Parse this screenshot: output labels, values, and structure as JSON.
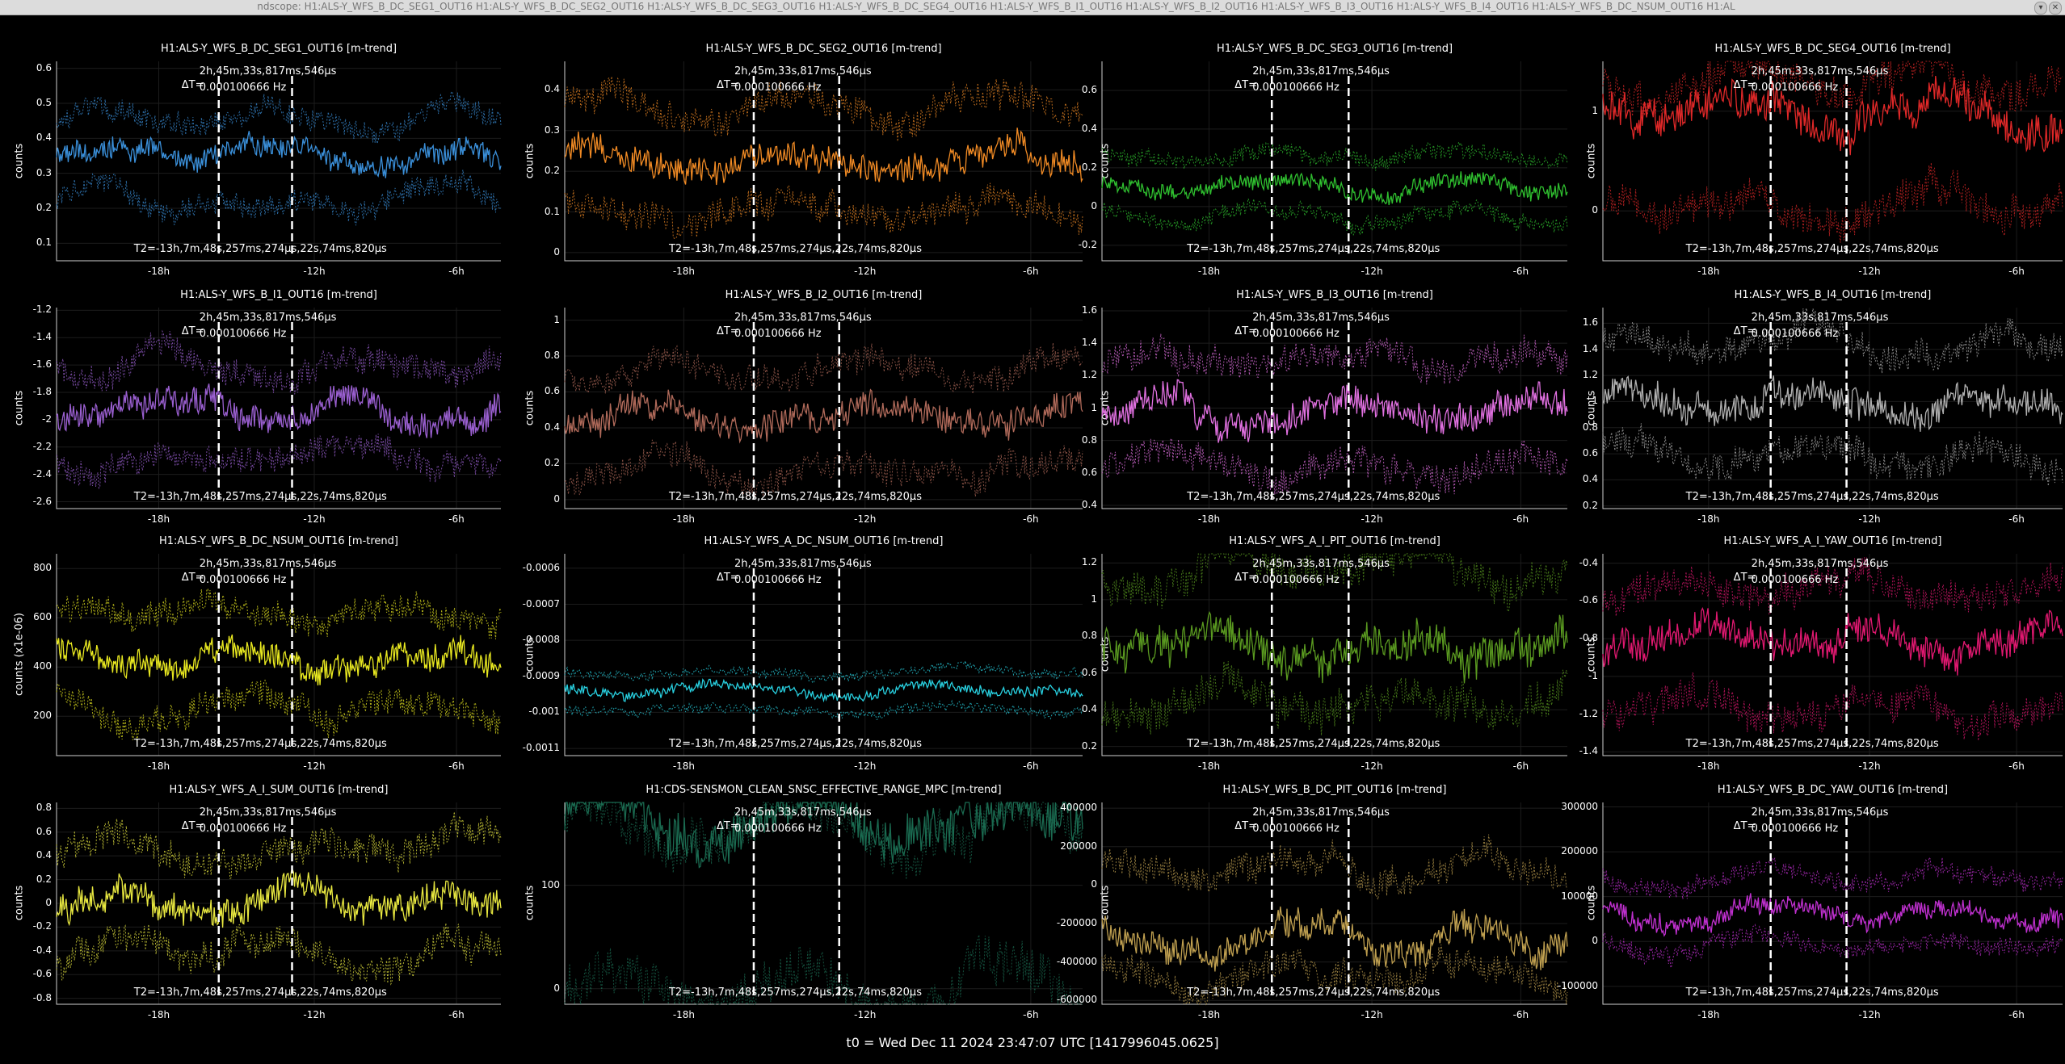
{
  "window": {
    "title": "ndscope: H1:ALS-Y_WFS_B_DC_SEG1_OUT16 H1:ALS-Y_WFS_B_DC_SEG2_OUT16 H1:ALS-Y_WFS_B_DC_SEG3_OUT16 H1:ALS-Y_WFS_B_DC_SEG4_OUT16 H1:ALS-Y_WFS_B_I1_OUT16 H1:ALS-Y_WFS_B_I2_OUT16 H1:ALS-Y_WFS_B_I3_OUT16 H1:ALS-Y_WFS_B_I4_OUT16 H1:ALS-Y_WFS_B_DC_NSUM_OUT16 H1:AL",
    "buttons": [
      "chevron-down-icon",
      "close-icon"
    ]
  },
  "cursor": {
    "dt_label": "ΔT=",
    "dt_value": "2h,45m,33s,817ms,546μs",
    "freq_value": "0.000100666 Hz",
    "t2_label": "T2=-13h,7m,48s,257ms,274μs",
    "t2_suffix": ",22s,74ms,820μs"
  },
  "x_ticks": [
    "-18h",
    "-12h",
    "-6h"
  ],
  "footer": {
    "t0": "t0 = Wed Dec 11 2024 23:47:07 UTC [1417996045.0625]"
  },
  "plots": [
    {
      "title": "H1:ALS-Y_WFS_B_DC_SEG1_OUT16 [m-trend]",
      "ylabel": "counts",
      "color": "#3a8fd9",
      "yticks": [
        "0.6",
        "0.5",
        "0.4",
        "0.3",
        "0.2",
        "0.1"
      ],
      "chart_data": {
        "type": "line",
        "ylim": [
          0.05,
          0.62
        ],
        "series": [
          {
            "values_mean": 0.35,
            "min_mean": 0.22,
            "max_mean": 0.45
          }
        ]
      }
    },
    {
      "title": "H1:ALS-Y_WFS_B_DC_SEG2_OUT16 [m-trend]",
      "ylabel": "counts",
      "color": "#f08a24",
      "yticks": [
        "0.4",
        "0.3",
        "0.2",
        "0.1",
        "0"
      ],
      "chart_data": {
        "type": "line",
        "ylim": [
          -0.02,
          0.47
        ],
        "series": [
          {
            "values_mean": 0.22,
            "min_mean": 0.1,
            "max_mean": 0.36
          }
        ]
      }
    },
    {
      "title": "H1:ALS-Y_WFS_B_DC_SEG3_OUT16 [m-trend]",
      "ylabel": "counts",
      "color": "#2fbf2f",
      "yticks": [
        "0.6",
        "0.4",
        "0.2",
        "0",
        "-0.2"
      ],
      "chart_data": {
        "type": "line",
        "ylim": [
          -0.28,
          0.75
        ],
        "series": [
          {
            "values_mean": 0.1,
            "min_mean": -0.05,
            "max_mean": 0.25
          }
        ]
      }
    },
    {
      "title": "H1:ALS-Y_WFS_B_DC_SEG4_OUT16 [m-trend]",
      "ylabel": "counts",
      "color": "#e02828",
      "yticks": [
        "1",
        "0"
      ],
      "chart_data": {
        "type": "line",
        "ylim": [
          -0.5,
          1.5
        ],
        "series": [
          {
            "values_mean": 1.0,
            "min_mean": 0.05,
            "max_mean": 1.3
          }
        ]
      }
    },
    {
      "title": "H1:ALS-Y_WFS_B_I1_OUT16 [m-trend]",
      "ylabel": "counts",
      "color": "#9a5fd0",
      "yticks": [
        "-1.2",
        "-1.4",
        "-1.6",
        "-1.8",
        "-2",
        "-2.2",
        "-2.4",
        "-2.6"
      ],
      "chart_data": {
        "type": "line",
        "ylim": [
          -2.65,
          -1.18
        ],
        "series": [
          {
            "values_mean": -1.95,
            "min_mean": -2.3,
            "max_mean": -1.6
          }
        ]
      }
    },
    {
      "title": "H1:ALS-Y_WFS_B_I2_OUT16 [m-trend]",
      "ylabel": "counts",
      "color": "#b06a5a",
      "yticks": [
        "1",
        "0.8",
        "0.6",
        "0.4",
        "0.2",
        "0"
      ],
      "chart_data": {
        "type": "line",
        "ylim": [
          -0.05,
          1.07
        ],
        "series": [
          {
            "values_mean": 0.45,
            "min_mean": 0.15,
            "max_mean": 0.72
          }
        ]
      }
    },
    {
      "title": "H1:ALS-Y_WFS_B_I3_OUT16 [m-trend]",
      "ylabel": "counts",
      "color": "#e070e0",
      "yticks": [
        "1.6",
        "1.4",
        "1.2",
        "1",
        "0.8",
        "0.6",
        "0.4"
      ],
      "chart_data": {
        "type": "line",
        "ylim": [
          0.38,
          1.62
        ],
        "series": [
          {
            "values_mean": 1.0,
            "min_mean": 0.65,
            "max_mean": 1.3
          }
        ]
      }
    },
    {
      "title": "H1:ALS-Y_WFS_B_I4_OUT16 [m-trend]",
      "ylabel": "counts",
      "color": "#b0b0b0",
      "yticks": [
        "1.6",
        "1.4",
        "1.2",
        "1",
        "0.8",
        "0.6",
        "0.4",
        "0.2"
      ],
      "chart_data": {
        "type": "line",
        "ylim": [
          0.18,
          1.72
        ],
        "series": [
          {
            "values_mean": 1.0,
            "min_mean": 0.6,
            "max_mean": 1.42
          }
        ]
      }
    },
    {
      "title": "H1:ALS-Y_WFS_B_DC_NSUM_OUT16 [m-trend]",
      "ylabel": "counts (x1e-06)",
      "color": "#e8e820",
      "yticks": [
        "800",
        "600",
        "400",
        "200"
      ],
      "chart_data": {
        "type": "line",
        "ylim": [
          40,
          860
        ],
        "series": [
          {
            "values_mean": 430,
            "min_mean": 230,
            "max_mean": 620
          }
        ]
      }
    },
    {
      "title": "H1:ALS-Y_WFS_A_DC_NSUM_OUT16 [m-trend]",
      "ylabel": "counts",
      "color": "#28d0e0",
      "yticks": [
        "-0.0006",
        "-0.0007",
        "-0.0008",
        "-0.0009",
        "-0.001",
        "-0.0011"
      ],
      "chart_data": {
        "type": "line",
        "ylim": [
          -0.00112,
          -0.00056
        ],
        "series": [
          {
            "values_mean": -0.00094,
            "min_mean": -0.00099,
            "max_mean": -0.00089
          }
        ]
      }
    },
    {
      "title": "H1:ALS-Y_WFS_A_I_PIT_OUT16 [m-trend]",
      "ylabel": "counts",
      "color": "#5a9a20",
      "yticks": [
        "1.2",
        "1",
        "0.8",
        "0.6",
        "0.4",
        "0.2"
      ],
      "chart_data": {
        "type": "line",
        "ylim": [
          0.15,
          1.25
        ],
        "series": [
          {
            "values_mean": 0.78,
            "min_mean": 0.45,
            "max_mean": 1.18
          }
        ]
      }
    },
    {
      "title": "H1:ALS-Y_WFS_A_I_YAW_OUT16 [m-trend]",
      "ylabel": "counts",
      "color": "#e01870",
      "yticks": [
        "-0.4",
        "-0.6",
        "-0.8",
        "-1",
        "-1.2",
        "-1.4"
      ],
      "chart_data": {
        "type": "line",
        "ylim": [
          -1.42,
          -0.35
        ],
        "series": [
          {
            "values_mean": -0.82,
            "min_mean": -1.15,
            "max_mean": -0.55
          }
        ]
      }
    },
    {
      "title": "H1:ALS-Y_WFS_A_I_SUM_OUT16 [m-trend]",
      "ylabel": "counts",
      "color": "#e8e840",
      "yticks": [
        "0.8",
        "0.6",
        "0.4",
        "0.2",
        "0",
        "-0.2",
        "-0.4",
        "-0.6",
        "-0.8"
      ],
      "chart_data": {
        "type": "line",
        "ylim": [
          -0.85,
          0.85
        ],
        "series": [
          {
            "values_mean": 0.0,
            "min_mean": -0.45,
            "max_mean": 0.45
          }
        ]
      }
    },
    {
      "title": "H1:CDS-SENSMON_CLEAN_SNSC_EFFECTIVE_RANGE_MPC [m-trend]",
      "ylabel": "counts",
      "color": "#1a6a50",
      "yticks": [
        "100",
        "0"
      ],
      "chart_data": {
        "type": "line",
        "ylim": [
          -15,
          180
        ],
        "series": [
          {
            "values_mean": 160,
            "min_mean": 0,
            "max_mean": 165
          }
        ]
      }
    },
    {
      "title": "H1:ALS-Y_WFS_B_DC_PIT_OUT16 [m-trend]",
      "ylabel": "counts",
      "color": "#c0a050",
      "yticks": [
        "400000",
        "200000",
        "0",
        "-200000",
        "-400000",
        "-600000"
      ],
      "chart_data": {
        "type": "line",
        "ylim": [
          -620000,
          430000
        ],
        "series": [
          {
            "values_mean": -280000,
            "min_mean": -460000,
            "max_mean": 80000
          }
        ]
      }
    },
    {
      "title": "H1:ALS-Y_WFS_B_DC_YAW_OUT16 [m-trend]",
      "ylabel": "counts",
      "color": "#c030d0",
      "yticks": [
        "300000",
        "200000",
        "100000",
        "0",
        "-100000"
      ],
      "chart_data": {
        "type": "line",
        "ylim": [
          -140000,
          310000
        ],
        "series": [
          {
            "values_mean": 60000,
            "min_mean": -10000,
            "max_mean": 140000
          }
        ]
      }
    }
  ]
}
